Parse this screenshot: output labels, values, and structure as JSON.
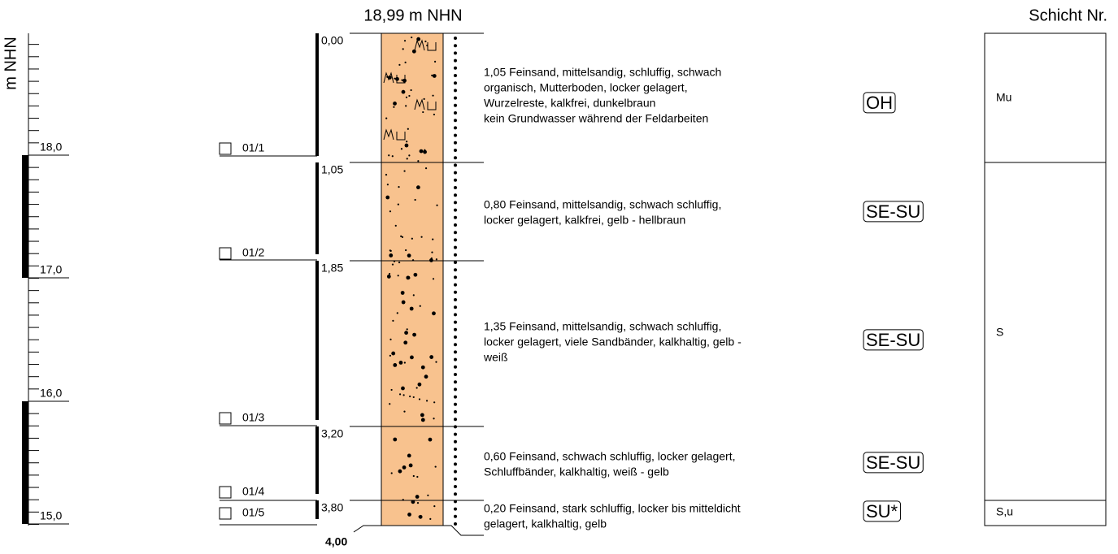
{
  "header": {
    "title": "18,99 m NHN",
    "column_title": "Schicht Nr."
  },
  "scale": {
    "axis_label": "m NHN",
    "labels": [
      "18,0",
      "17,0",
      "16,0",
      "15,0"
    ]
  },
  "layers": [
    {
      "depth": "0,00",
      "sample": "01/1",
      "code": "OH",
      "description": [
        "1,05 Feinsand, mittelsandig, schluffig, schwach",
        "organisch, Mutterboden, locker gelagert,",
        "Wurzelreste, kalkfrei, dunkelbraun",
        "kein Grundwasser während der Feldarbeiten"
      ]
    },
    {
      "depth": "1,05",
      "sample": "01/2",
      "code": "SE-SU",
      "description": [
        "0,80 Feinsand, mittelsandig, schwach schluffig,",
        "locker gelagert, kalkfrei, gelb - hellbraun"
      ]
    },
    {
      "depth": "1,85",
      "sample": "01/3",
      "code": "SE-SU",
      "description": [
        "1,35 Feinsand, mittelsandig, schwach schluffig,",
        "locker gelagert, viele Sandbänder, kalkhaltig, gelb -",
        "weiß"
      ]
    },
    {
      "depth": "3,20",
      "sample": "01/4",
      "code": "SE-SU",
      "description": [
        "0,60 Feinsand, schwach schluffig, locker gelagert,",
        "Schluffbänder, kalkhaltig, weiß - gelb"
      ]
    },
    {
      "depth": "3,80",
      "sample": "01/5",
      "code": "SU*",
      "description": [
        "0,20 Feinsand, stark schluffig, locker bis mitteldicht",
        "gelagert, kalkhaltig, gelb"
      ]
    }
  ],
  "bottom_depth": "4,00",
  "schicht": [
    "Mu",
    "S",
    "S,u"
  ]
}
